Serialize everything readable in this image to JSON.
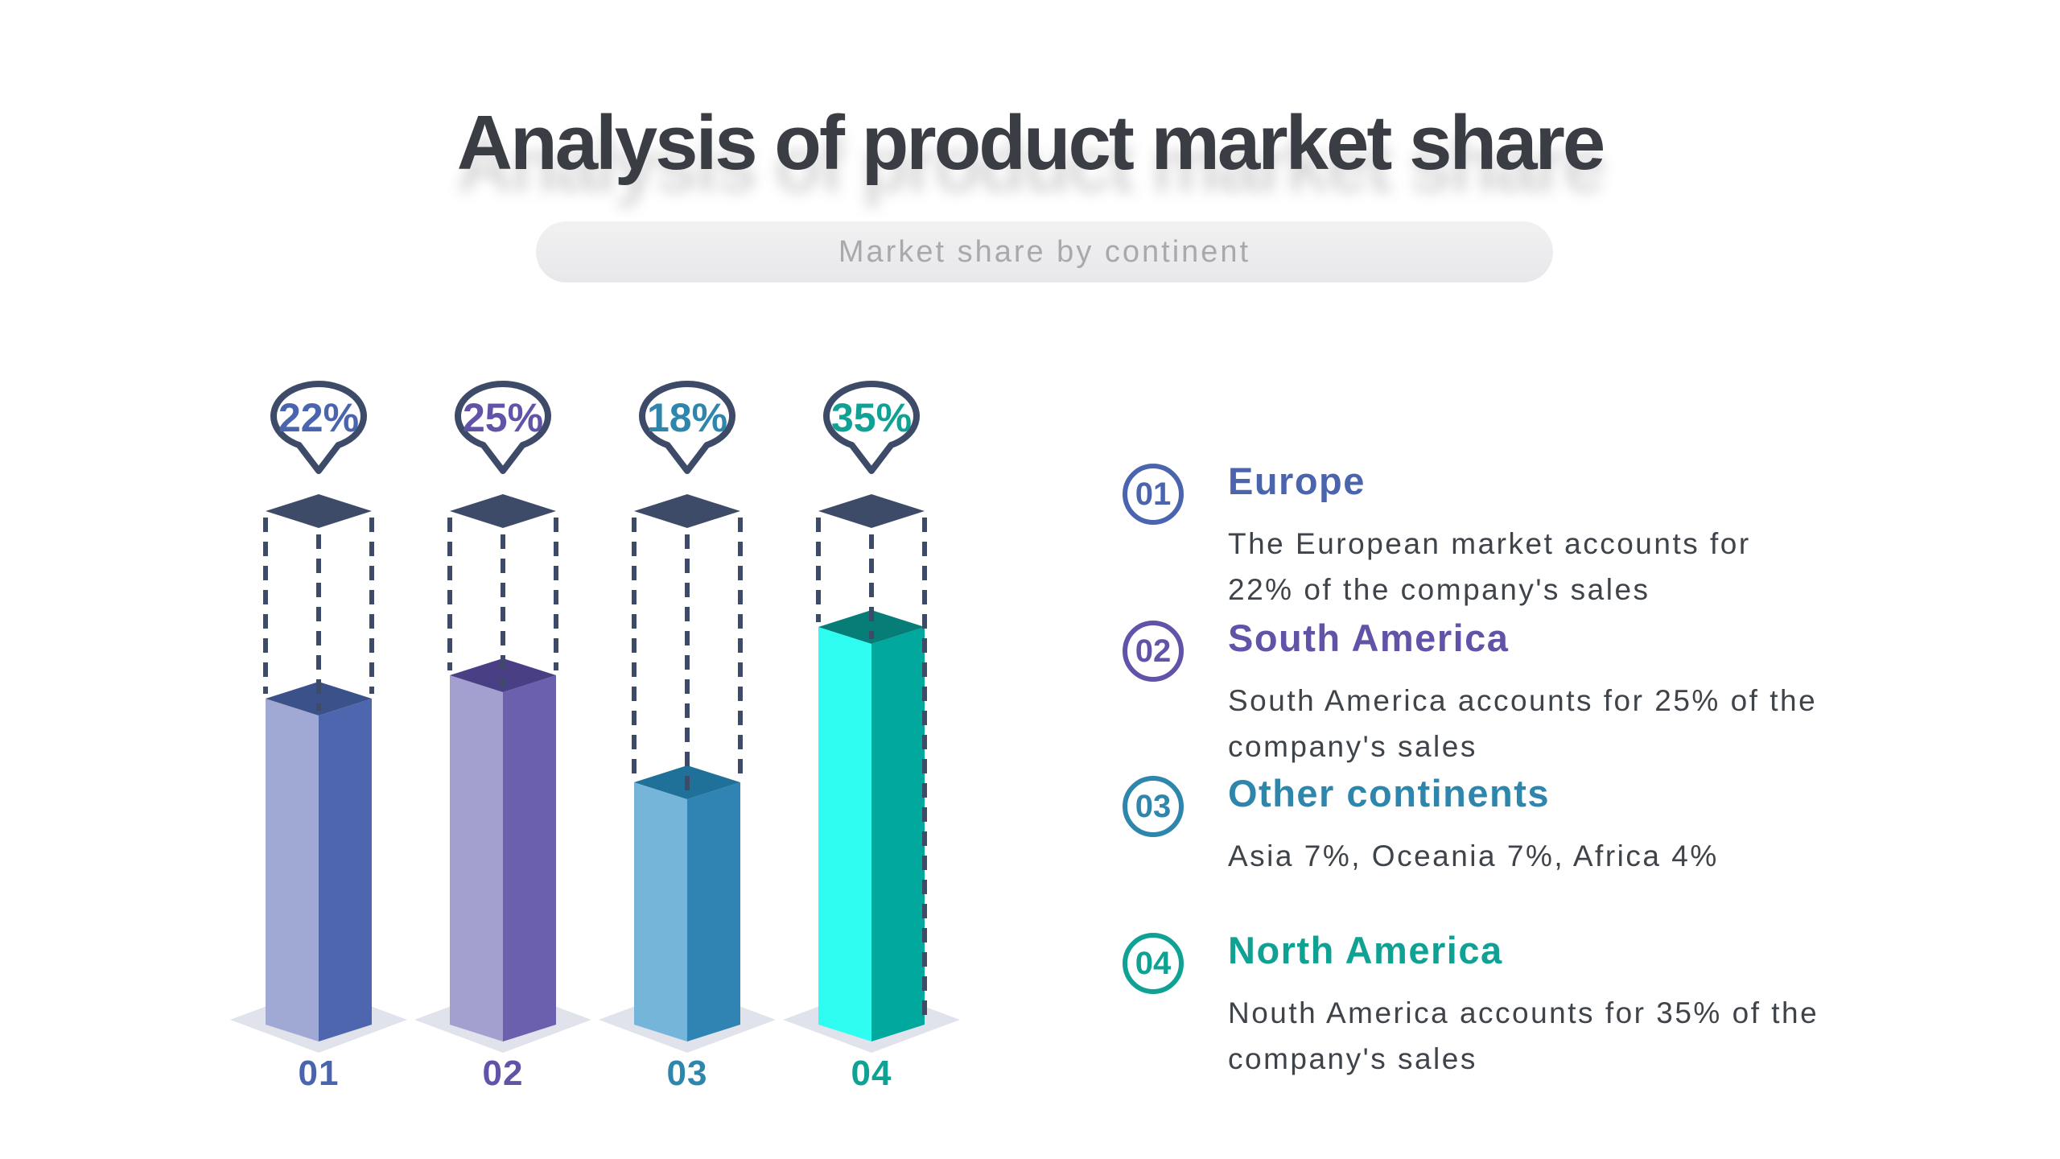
{
  "header": {
    "title": "Analysis of product market share",
    "subtitle": "Market share by continent"
  },
  "chart_data": {
    "type": "bar",
    "title": "Analysis of product market share",
    "subtitle": "Market share by continent",
    "unit": "%",
    "categories": [
      "01",
      "02",
      "03",
      "04"
    ],
    "values": [
      22,
      25,
      18,
      35
    ],
    "grid": false,
    "legend_position": "right",
    "wireframe_color": "#3E4B68",
    "floor_color": "#E0E3EB",
    "bars": [
      {
        "category": "01",
        "value": 22,
        "label": "22%",
        "name": "Europe",
        "face_left": "#9FA9D3",
        "face_right": "#4E66AE",
        "face_top": "#3A5289",
        "accent": "#4A64AE"
      },
      {
        "category": "02",
        "value": 25,
        "label": "25%",
        "name": "South America",
        "face_left": "#A39FCE",
        "face_right": "#6A60AE",
        "face_top": "#493F85",
        "accent": "#6053A8"
      },
      {
        "category": "03",
        "value": 18,
        "label": "18%",
        "name": "Other continents",
        "face_left": "#74B5D9",
        "face_right": "#2F84B4",
        "face_top": "#20719A",
        "accent": "#2E86AD"
      },
      {
        "category": "04",
        "value": 35,
        "label": "35%",
        "name": "North America",
        "face_left": "#30FDF2",
        "face_right": "#01A89E",
        "face_top": "#077D78",
        "accent": "#0FA294"
      }
    ]
  },
  "legend": {
    "items": [
      {
        "number": "01",
        "heading": "Europe",
        "body": "The European market accounts for\n22% of the company's sales",
        "accent": "#4A64AE"
      },
      {
        "number": "02",
        "heading": "South America",
        "body": "South America accounts for 25% of the\ncompany's sales",
        "accent": "#6053A8"
      },
      {
        "number": "03",
        "heading": "Other continents",
        "body": "Asia 7%, Oceania 7%, Africa 4%",
        "accent": "#2E86AD"
      },
      {
        "number": "04",
        "heading": "North America",
        "body": "Nouth America accounts for 35% of the\ncompany's sales",
        "accent": "#0FA294"
      }
    ]
  }
}
